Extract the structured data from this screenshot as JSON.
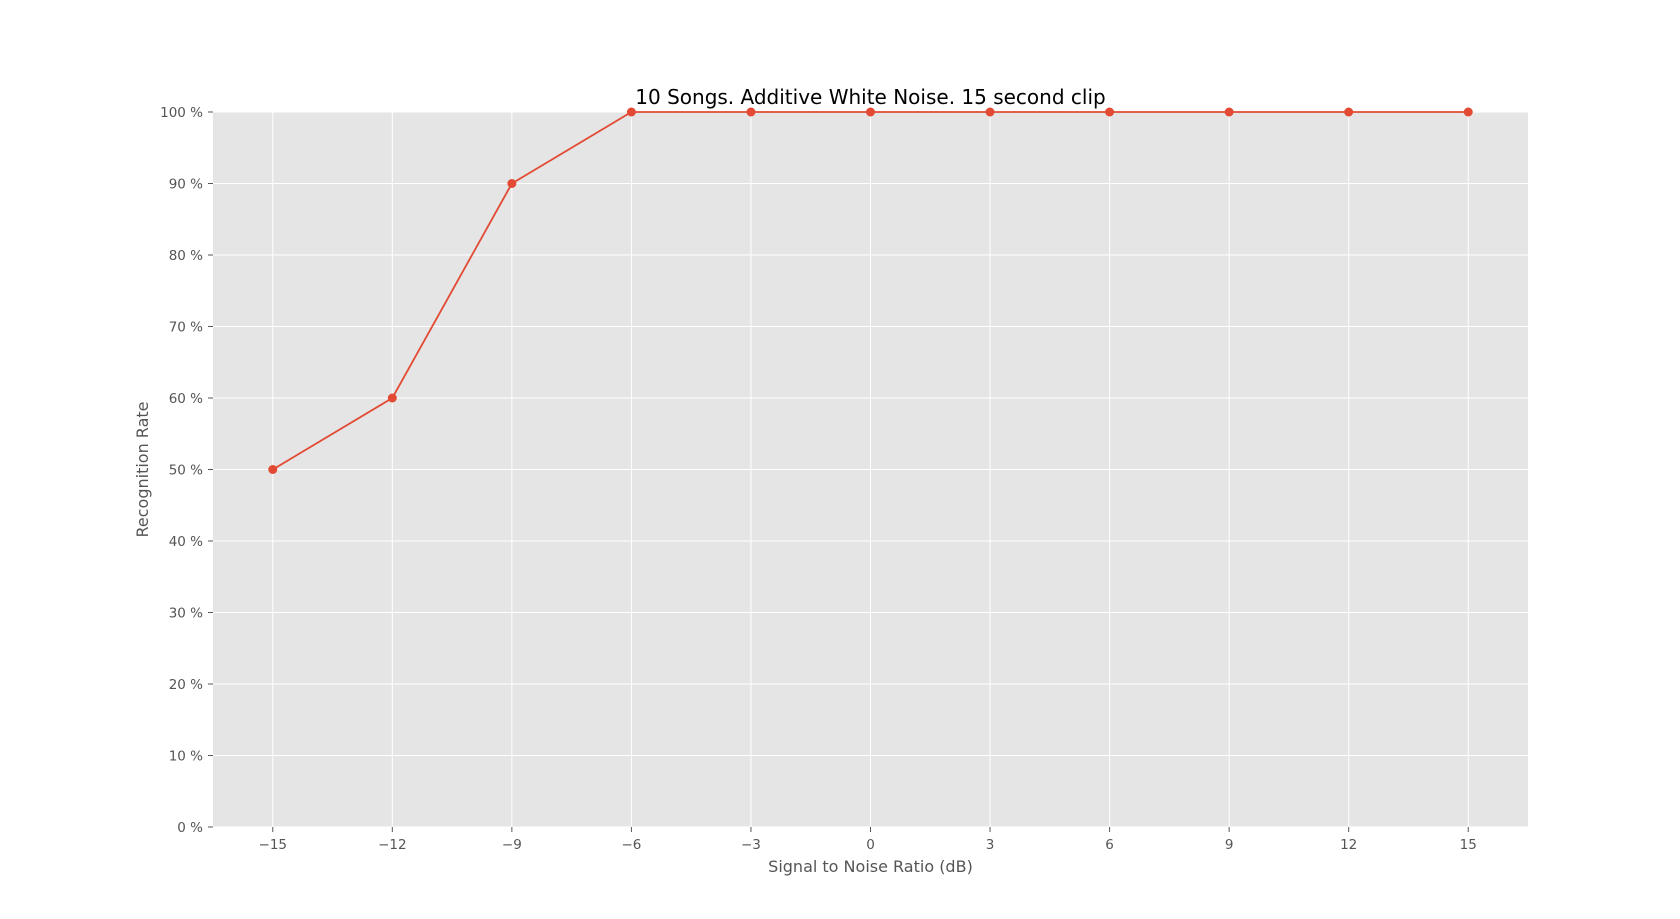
{
  "chart_data": {
    "type": "line",
    "title": "10 Songs. Additive White Noise. 15 second clip",
    "xlabel": "Signal to Noise Ratio (dB)",
    "ylabel": "Recognition Rate",
    "x": [
      -15,
      -12,
      -9,
      -6,
      -3,
      0,
      3,
      6,
      9,
      12,
      15
    ],
    "series": [
      {
        "values": [
          50,
          60,
          90,
          100,
          100,
          100,
          100,
          100,
          100,
          100,
          100
        ]
      }
    ],
    "x_ticks": [
      -15,
      -12,
      -9,
      -6,
      -3,
      0,
      3,
      6,
      9,
      12,
      15
    ],
    "x_tick_labels": [
      "−15",
      "−12",
      "−9",
      "−6",
      "−3",
      "0",
      "3",
      "6",
      "9",
      "12",
      "15"
    ],
    "y_ticks": [
      0,
      10,
      20,
      30,
      40,
      50,
      60,
      70,
      80,
      90,
      100
    ],
    "y_tick_labels": [
      "0 %",
      "10 %",
      "20 %",
      "30 %",
      "40 %",
      "50 %",
      "60 %",
      "70 %",
      "80 %",
      "90 %",
      "100 %"
    ],
    "xlim": [
      -16.5,
      16.5
    ],
    "ylim": [
      0,
      100
    ],
    "grid": true,
    "colors": {
      "series": "#e24a33",
      "plot_background": "#e5e5e5",
      "grid": "#ffffff"
    }
  }
}
